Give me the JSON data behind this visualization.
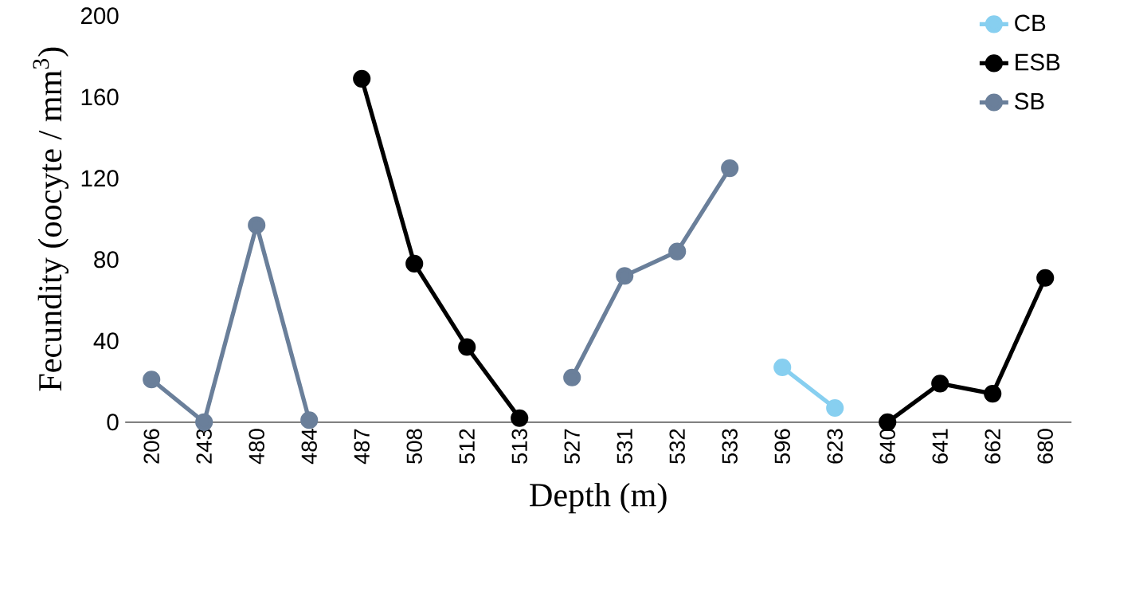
{
  "chart_data": {
    "type": "line",
    "xlabel": "Depth (m)",
    "ylabel": "Fecundity (oocyte / mm$^{3}$)",
    "categories": [
      "206",
      "243",
      "480",
      "484",
      "487",
      "508",
      "512",
      "513",
      "527",
      "531",
      "532",
      "533",
      "596",
      "623",
      "640",
      "641",
      "662",
      "680"
    ],
    "series": [
      {
        "name": "CB",
        "color": "#87cff0",
        "values": [
          null,
          null,
          null,
          null,
          null,
          null,
          null,
          null,
          null,
          null,
          null,
          null,
          27,
          7,
          null,
          null,
          null,
          null
        ]
      },
      {
        "name": "ESB",
        "color": "#000000",
        "values": [
          null,
          null,
          null,
          null,
          169,
          78,
          37,
          2,
          null,
          null,
          null,
          null,
          null,
          null,
          0,
          19,
          14,
          71
        ]
      },
      {
        "name": "SB",
        "color": "#6a7f9a",
        "values": [
          21,
          0,
          97,
          1,
          null,
          null,
          null,
          null,
          22,
          72,
          84,
          125,
          null,
          null,
          null,
          null,
          null,
          null
        ]
      }
    ],
    "ylim": [
      0,
      200
    ],
    "yticks": [
      0,
      40,
      80,
      120,
      160,
      200
    ],
    "grid": false,
    "legend": "top right",
    "marker": "circle",
    "line_style": "solid"
  }
}
